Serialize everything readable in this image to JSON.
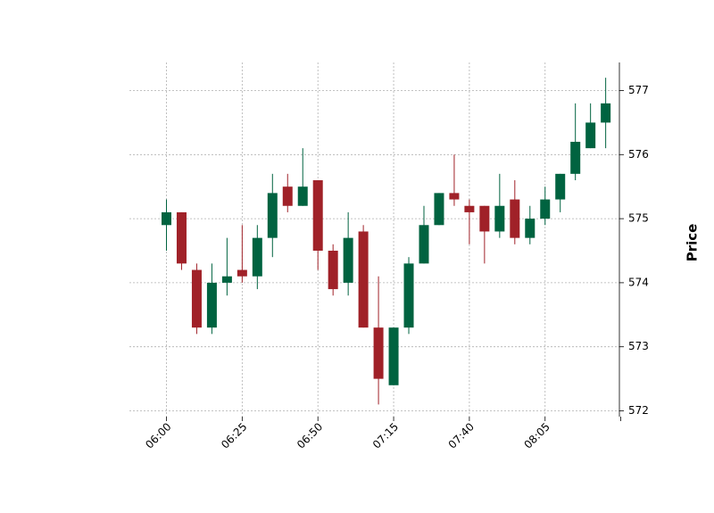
{
  "chart_data": {
    "type": "candlestick",
    "title": "",
    "xlabel": "",
    "ylabel": "Price",
    "ylim": [
      571.85,
      577.4
    ],
    "y_ticks": [
      572,
      573,
      574,
      575,
      576,
      577
    ],
    "x_ticks": [
      "06:00",
      "06:25",
      "06:50",
      "07:15",
      "07:40",
      "08:05",
      ""
    ],
    "x_tick_indices": [
      0,
      5,
      10,
      15,
      20,
      25,
      30
    ],
    "grid": true,
    "colors": {
      "up": "#006340",
      "down": "#a02128"
    },
    "candles": [
      {
        "time": "06:00",
        "open": 574.9,
        "high": 575.3,
        "low": 574.5,
        "close": 575.1
      },
      {
        "time": "06:05",
        "open": 575.1,
        "high": 575.1,
        "low": 574.2,
        "close": 574.3
      },
      {
        "time": "06:10",
        "open": 574.2,
        "high": 574.3,
        "low": 573.2,
        "close": 573.3
      },
      {
        "time": "06:15",
        "open": 573.3,
        "high": 574.3,
        "low": 573.2,
        "close": 574.0
      },
      {
        "time": "06:20",
        "open": 574.0,
        "high": 574.7,
        "low": 573.8,
        "close": 574.1
      },
      {
        "time": "06:25",
        "open": 574.2,
        "high": 574.9,
        "low": 574.0,
        "close": 574.1
      },
      {
        "time": "06:30",
        "open": 574.1,
        "high": 574.9,
        "low": 573.9,
        "close": 574.7
      },
      {
        "time": "06:35",
        "open": 574.7,
        "high": 575.7,
        "low": 574.4,
        "close": 575.4
      },
      {
        "time": "06:40",
        "open": 575.5,
        "high": 575.7,
        "low": 575.1,
        "close": 575.2
      },
      {
        "time": "06:45",
        "open": 575.2,
        "high": 576.1,
        "low": 575.2,
        "close": 575.5
      },
      {
        "time": "06:50",
        "open": 575.6,
        "high": 575.6,
        "low": 574.2,
        "close": 574.5
      },
      {
        "time": "06:55",
        "open": 574.5,
        "high": 574.6,
        "low": 573.8,
        "close": 573.9
      },
      {
        "time": "07:00",
        "open": 574.0,
        "high": 575.1,
        "low": 573.8,
        "close": 574.7
      },
      {
        "time": "07:05",
        "open": 574.8,
        "high": 574.9,
        "low": 573.3,
        "close": 573.3
      },
      {
        "time": "07:10",
        "open": 573.3,
        "high": 574.1,
        "low": 572.1,
        "close": 572.5
      },
      {
        "time": "07:15",
        "open": 572.4,
        "high": 573.3,
        "low": 572.4,
        "close": 573.3
      },
      {
        "time": "07:20",
        "open": 573.3,
        "high": 574.4,
        "low": 573.2,
        "close": 574.3
      },
      {
        "time": "07:25",
        "open": 574.3,
        "high": 575.2,
        "low": 574.3,
        "close": 574.9
      },
      {
        "time": "07:30",
        "open": 574.9,
        "high": 575.4,
        "low": 574.9,
        "close": 575.4
      },
      {
        "time": "07:35",
        "open": 575.4,
        "high": 576.0,
        "low": 575.2,
        "close": 575.3
      },
      {
        "time": "07:40",
        "open": 575.2,
        "high": 575.3,
        "low": 574.6,
        "close": 575.1
      },
      {
        "time": "07:45",
        "open": 575.2,
        "high": 575.2,
        "low": 574.3,
        "close": 574.8
      },
      {
        "time": "07:50",
        "open": 574.8,
        "high": 575.7,
        "low": 574.7,
        "close": 575.2
      },
      {
        "time": "07:55",
        "open": 575.3,
        "high": 575.6,
        "low": 574.6,
        "close": 574.7
      },
      {
        "time": "08:00",
        "open": 574.7,
        "high": 575.2,
        "low": 574.6,
        "close": 575.0
      },
      {
        "time": "08:05",
        "open": 575.0,
        "high": 575.5,
        "low": 574.9,
        "close": 575.3
      },
      {
        "time": "08:10",
        "open": 575.3,
        "high": 575.7,
        "low": 575.1,
        "close": 575.7
      },
      {
        "time": "08:15",
        "open": 575.7,
        "high": 576.8,
        "low": 575.6,
        "close": 576.2
      },
      {
        "time": "08:20",
        "open": 576.1,
        "high": 576.8,
        "low": 576.1,
        "close": 576.5
      },
      {
        "time": "08:25",
        "open": 576.5,
        "high": 577.2,
        "low": 576.1,
        "close": 576.8
      }
    ]
  }
}
